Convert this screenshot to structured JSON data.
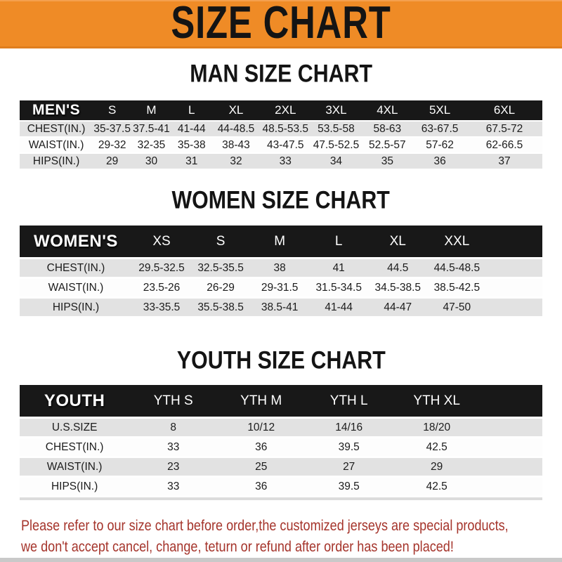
{
  "banner": {
    "title": "SIZE CHART",
    "bg_color": "#ef8b26",
    "text_color": "#141414"
  },
  "sections": [
    {
      "heading": "MAN SIZE CHART",
      "table": {
        "header": [
          "MEN'S",
          "S",
          "M",
          "L",
          "XL",
          "2XL",
          "3XL",
          "4XL",
          "5XL",
          "6XL"
        ],
        "rows": [
          [
            "CHEST(IN.)",
            "35-37.5",
            "37.5-41",
            "41-44",
            "44-48.5",
            "48.5-53.5",
            "53.5-58",
            "58-63",
            "63-67.5",
            "67.5-72"
          ],
          [
            "WAIST(IN.)",
            "29-32",
            "32-35",
            "35-38",
            "38-43",
            "43-47.5",
            "47.5-52.5",
            "52.5-57",
            "57-62",
            "62-66.5"
          ],
          [
            "HIPS(IN.)",
            "29",
            "30",
            "31",
            "32",
            "33",
            "34",
            "35",
            "36",
            "37"
          ]
        ]
      }
    },
    {
      "heading": "WOMEN SIZE CHART",
      "table": {
        "header": [
          "WOMEN'S",
          "XS",
          "S",
          "M",
          "L",
          "XL",
          "XXL"
        ],
        "rows": [
          [
            "CHEST(IN.)",
            "29.5-32.5",
            "32.5-35.5",
            "38",
            "41",
            "44.5",
            "44.5-48.5"
          ],
          [
            "WAIST(IN.)",
            "23.5-26",
            "26-29",
            "29-31.5",
            "31.5-34.5",
            "34.5-38.5",
            "38.5-42.5"
          ],
          [
            "HIPS(IN.)",
            "33-35.5",
            "35.5-38.5",
            "38.5-41",
            "41-44",
            "44-47",
            "47-50"
          ]
        ]
      }
    },
    {
      "heading": "YOUTH SIZE CHART",
      "table": {
        "header": [
          "YOUTH",
          "YTH S",
          "YTH M",
          "YTH L",
          "YTH XL"
        ],
        "rows": [
          [
            "U.S.SIZE",
            "8",
            "10/12",
            "14/16",
            "18/20"
          ],
          [
            "CHEST(IN.)",
            "33",
            "36",
            "39.5",
            "42.5"
          ],
          [
            "WAIST(IN.)",
            "23",
            "25",
            "27",
            "29"
          ],
          [
            "HIPS(IN.)",
            "33",
            "36",
            "39.5",
            "42.5"
          ]
        ]
      }
    }
  ],
  "disclaimer": {
    "lines": [
      "Please refer to our size chart before order,the customized jerseys are special products,",
      "we don't accept cancel, change, teturn or refund after order has been placed!"
    ],
    "text_color": "#a5342b"
  },
  "colors": {
    "header_bar": "#181818",
    "row_alt_gray": "#e2e2e2",
    "row_white": "#fdfdfd"
  }
}
